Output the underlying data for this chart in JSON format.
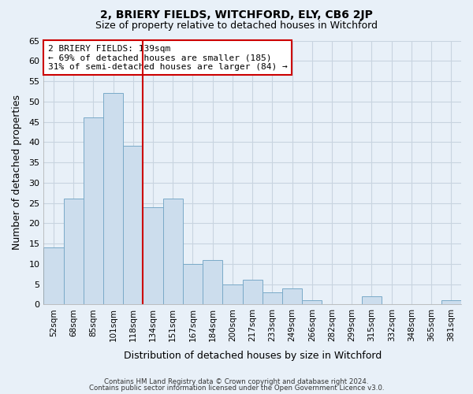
{
  "title": "2, BRIERY FIELDS, WITCHFORD, ELY, CB6 2JP",
  "subtitle": "Size of property relative to detached houses in Witchford",
  "xlabel": "Distribution of detached houses by size in Witchford",
  "ylabel": "Number of detached properties",
  "footnote1": "Contains HM Land Registry data © Crown copyright and database right 2024.",
  "footnote2": "Contains public sector information licensed under the Open Government Licence v3.0.",
  "bar_labels": [
    "52sqm",
    "68sqm",
    "85sqm",
    "101sqm",
    "118sqm",
    "134sqm",
    "151sqm",
    "167sqm",
    "184sqm",
    "200sqm",
    "217sqm",
    "233sqm",
    "249sqm",
    "266sqm",
    "282sqm",
    "299sqm",
    "315sqm",
    "332sqm",
    "348sqm",
    "365sqm",
    "381sqm"
  ],
  "bar_values": [
    14,
    26,
    46,
    52,
    39,
    24,
    26,
    10,
    11,
    5,
    6,
    3,
    4,
    1,
    0,
    0,
    2,
    0,
    0,
    0,
    1
  ],
  "bar_color": "#ccdded",
  "bar_edge_color": "#7aaac8",
  "vline_color": "#cc0000",
  "annotation_title": "2 BRIERY FIELDS: 139sqm",
  "annotation_line1": "← 69% of detached houses are smaller (185)",
  "annotation_line2": "31% of semi-detached houses are larger (84) →",
  "annotation_box_color": "#ffffff",
  "annotation_box_edge": "#cc0000",
  "ylim": [
    0,
    65
  ],
  "yticks": [
    0,
    5,
    10,
    15,
    20,
    25,
    30,
    35,
    40,
    45,
    50,
    55,
    60,
    65
  ],
  "grid_color": "#c8d4e0",
  "bg_color": "#e8f0f8",
  "plot_bg_color": "#e8f0f8",
  "title_fontsize": 10,
  "subtitle_fontsize": 9
}
